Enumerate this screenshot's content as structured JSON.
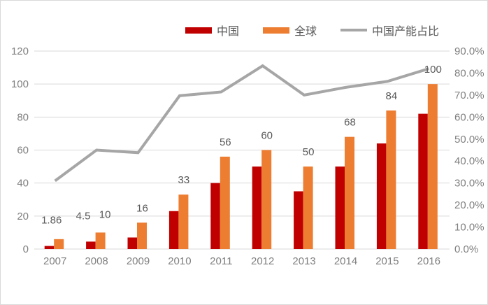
{
  "legend": {
    "items": [
      {
        "label": "中国",
        "swatch": "bar",
        "color": "#c00000"
      },
      {
        "label": "全球",
        "swatch": "bar",
        "color": "#ed7d31"
      },
      {
        "label": "中国产能占比",
        "swatch": "line",
        "color": "#a6a6a6"
      }
    ]
  },
  "chart_data": {
    "type": "bar",
    "title": "",
    "categories": [
      "2007",
      "2008",
      "2009",
      "2010",
      "2011",
      "2012",
      "2013",
      "2014",
      "2015",
      "2016"
    ],
    "series": [
      {
        "name": "中国",
        "type": "bar",
        "axis": "left",
        "color": "#c00000",
        "values": [
          1.86,
          4.5,
          7,
          23,
          40,
          50,
          35,
          50,
          64,
          82
        ],
        "point_labels": [
          "1.86",
          "4.5",
          "",
          "",
          "",
          "",
          "",
          "",
          "",
          ""
        ]
      },
      {
        "name": "全球",
        "type": "bar",
        "axis": "left",
        "color": "#ed7d31",
        "values": [
          6,
          10,
          16,
          33,
          56,
          60,
          50,
          68,
          84,
          100
        ],
        "point_labels": [
          "",
          "10",
          "16",
          "33",
          "56",
          "60",
          "50",
          "68",
          "84",
          "100"
        ]
      },
      {
        "name": "中国产能占比",
        "type": "line",
        "axis": "right",
        "color": "#a6a6a6",
        "values": [
          31.0,
          45.0,
          43.8,
          69.7,
          71.4,
          83.3,
          70.0,
          73.5,
          76.2,
          82.0
        ],
        "point_labels": [
          "",
          "",
          "",
          "",
          "",
          "",
          "",
          "",
          "",
          ""
        ]
      }
    ],
    "left_axis": {
      "min": 0,
      "max": 120,
      "tick_values": [
        0,
        20,
        40,
        60,
        80,
        100,
        120
      ],
      "ticks": [
        "0",
        "20",
        "40",
        "60",
        "80",
        "100",
        "120"
      ]
    },
    "right_axis": {
      "min": 0,
      "max": 90,
      "tick_values": [
        0,
        10,
        20,
        30,
        40,
        50,
        60,
        70,
        80,
        90
      ],
      "ticks": [
        "0.0%",
        "10.0%",
        "20.0%",
        "30.0%",
        "40.0%",
        "50.0%",
        "60.0%",
        "70.0%",
        "80.0%",
        "90.0%"
      ]
    },
    "grid": true,
    "legend_position": "top"
  },
  "colors": {
    "background": "#ffffff",
    "border": "#d9d9d9",
    "gridline": "#d9d9d9",
    "axis_text": "#808080",
    "data_label_text": "#595959"
  }
}
